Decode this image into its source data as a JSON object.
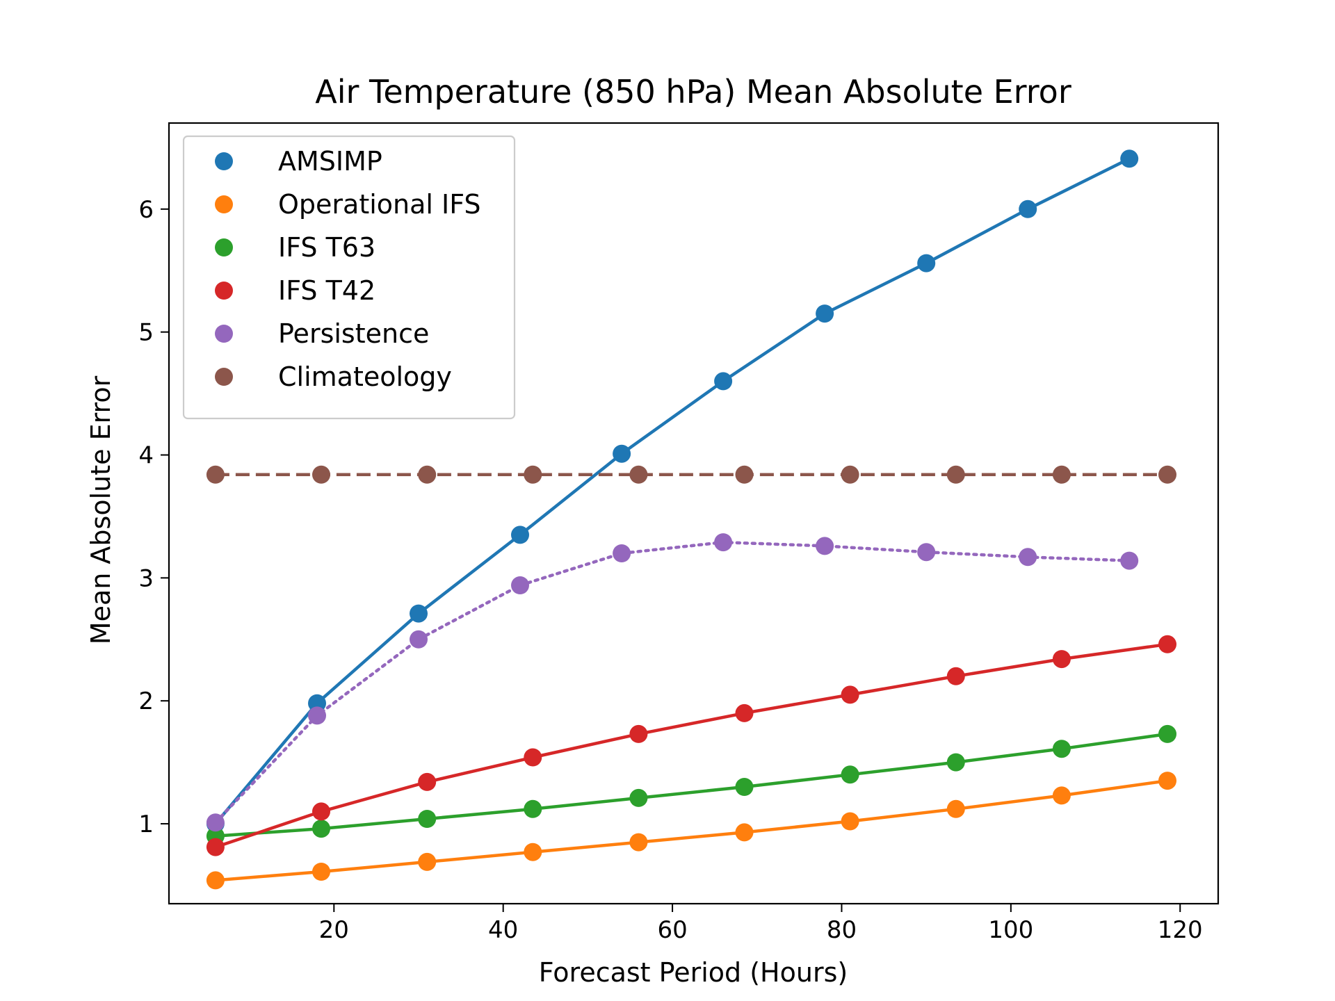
{
  "chart_data": {
    "type": "line",
    "title": "Air Temperature (850 hPa) Mean Absolute Error",
    "xlabel": "Forecast Period (Hours)",
    "ylabel": "Mean Absolute Error",
    "xlim": [
      0.5,
      124.5
    ],
    "ylim": [
      0.35,
      6.7
    ],
    "xticks": [
      20,
      40,
      60,
      80,
      100,
      120
    ],
    "yticks": [
      1,
      2,
      3,
      4,
      5,
      6
    ],
    "grid": false,
    "legend_position": "top-left",
    "series": [
      {
        "name": "AMSIMP",
        "color": "#1f77b4",
        "linestyle": "solid",
        "x": [
          6,
          18,
          30,
          42,
          54,
          66,
          78,
          90,
          102,
          114
        ],
        "y": [
          1.0,
          1.98,
          2.71,
          3.35,
          4.01,
          4.6,
          5.15,
          5.56,
          6.0,
          6.41
        ]
      },
      {
        "name": "Operational IFS",
        "color": "#ff7f0e",
        "linestyle": "solid",
        "x": [
          6,
          18.5,
          31,
          43.5,
          56,
          68.5,
          81,
          93.5,
          106,
          118.5
        ],
        "y": [
          0.54,
          0.61,
          0.69,
          0.77,
          0.85,
          0.93,
          1.02,
          1.12,
          1.23,
          1.35
        ]
      },
      {
        "name": "IFS T63",
        "color": "#2ca02c",
        "linestyle": "solid",
        "x": [
          6,
          18.5,
          31,
          43.5,
          56,
          68.5,
          81,
          93.5,
          106,
          118.5
        ],
        "y": [
          0.9,
          0.96,
          1.04,
          1.12,
          1.21,
          1.3,
          1.4,
          1.5,
          1.61,
          1.73
        ]
      },
      {
        "name": "IFS T42",
        "color": "#d62728",
        "linestyle": "solid",
        "x": [
          6,
          18.5,
          31,
          43.5,
          56,
          68.5,
          81,
          93.5,
          106,
          118.5
        ],
        "y": [
          0.81,
          1.1,
          1.34,
          1.54,
          1.73,
          1.9,
          2.05,
          2.2,
          2.34,
          2.46
        ]
      },
      {
        "name": "Persistence",
        "color": "#9467bd",
        "linestyle": "dotted",
        "x": [
          6,
          18,
          30,
          42,
          54,
          66,
          78,
          90,
          102,
          114
        ],
        "y": [
          1.01,
          1.88,
          2.5,
          2.94,
          3.2,
          3.29,
          3.26,
          3.21,
          3.17,
          3.14
        ]
      },
      {
        "name": "Climateology",
        "color": "#8c564b",
        "linestyle": "dashed",
        "x": [
          6,
          18.5,
          31,
          43.5,
          56,
          68.5,
          81,
          93.5,
          106,
          118.5
        ],
        "y": [
          3.84,
          3.84,
          3.84,
          3.84,
          3.84,
          3.84,
          3.84,
          3.84,
          3.84,
          3.84
        ]
      }
    ]
  }
}
